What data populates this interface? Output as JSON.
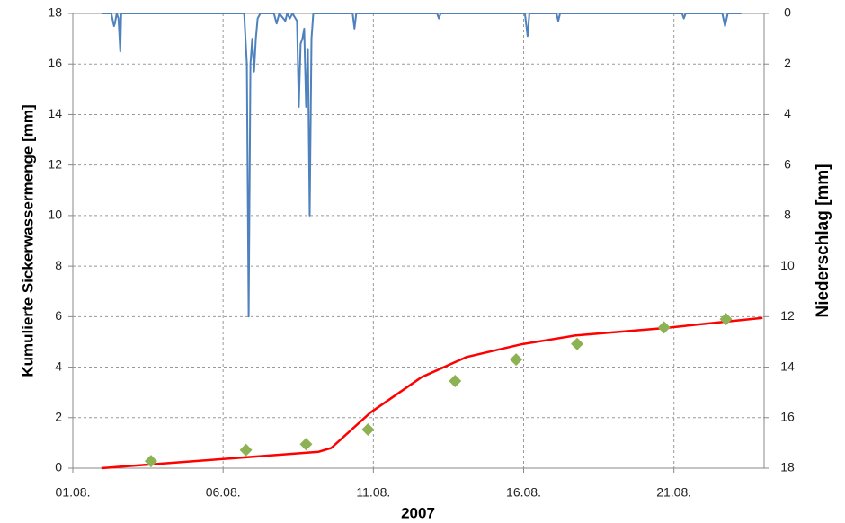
{
  "chart_data": {
    "type": "line",
    "xlabel": "2007",
    "ylabel": "Kumulierte  Sickerwassermenge  [mm]",
    "y2label": "Niederschlag [mm]",
    "xlim": [
      1,
      24
    ],
    "xticks": [
      {
        "value": 1,
        "label": "01.08."
      },
      {
        "value": 6,
        "label": "06.08."
      },
      {
        "value": 11,
        "label": "11.08."
      },
      {
        "value": 16,
        "label": "16.08."
      },
      {
        "value": 21,
        "label": "21.08."
      }
    ],
    "ylim": [
      0,
      18
    ],
    "yticks": [
      0,
      2,
      4,
      6,
      8,
      10,
      12,
      14,
      16,
      18
    ],
    "y2lim": [
      18,
      0
    ],
    "y2ticks": [
      0,
      2,
      4,
      6,
      8,
      10,
      12,
      14,
      16,
      18
    ],
    "grid": true,
    "series": [
      {
        "type": "line",
        "color": "#ff0000",
        "x": [
          1.95,
          9.18,
          9.6,
          10.9,
          12.6,
          14.1,
          15.9,
          17.7,
          20.7,
          23.95
        ],
        "values": [
          0,
          0.65,
          0.8,
          2.2,
          3.6,
          4.4,
          4.9,
          5.25,
          5.55,
          5.95
        ]
      },
      {
        "type": "scatter",
        "color": "#8db254",
        "x": [
          3.6,
          6.76,
          8.76,
          10.82,
          13.72,
          15.75,
          17.78,
          20.67,
          22.73
        ],
        "values": [
          0.28,
          0.72,
          0.95,
          1.53,
          3.45,
          4.3,
          4.92,
          5.57,
          5.9
        ]
      },
      {
        "type": "line",
        "color": "#4f81bd",
        "axis": "y2",
        "x": [
          1.96,
          2.28,
          2.37,
          2.4,
          2.46,
          2.52,
          2.58,
          2.61,
          6.7,
          6.79,
          6.85,
          6.91,
          6.97,
          7.03,
          7.09,
          7.15,
          7.24,
          7.69,
          7.78,
          7.87,
          8.07,
          8.13,
          8.22,
          8.31,
          8.46,
          8.52,
          8.58,
          8.64,
          8.7,
          8.76,
          8.82,
          8.88,
          8.94,
          9.0,
          10.31,
          10.37,
          10.43,
          13.12,
          13.18,
          13.24,
          16.04,
          16.13,
          16.19,
          17.09,
          17.15,
          17.21,
          21.27,
          21.33,
          21.39,
          22.61,
          22.7,
          22.79,
          23.24
        ],
        "values": [
          0,
          0,
          0.5,
          0.4,
          0,
          0.2,
          1.5,
          0,
          0,
          2,
          12,
          2,
          1,
          2.3,
          1,
          0.2,
          0,
          0,
          0.4,
          0,
          0.3,
          0,
          0.2,
          0,
          0.3,
          3.7,
          1.2,
          1,
          0.6,
          3.7,
          1.4,
          8,
          1,
          0,
          0,
          0.6,
          0,
          0,
          0.2,
          0,
          0,
          0.9,
          0,
          0,
          0.3,
          0,
          0,
          0.2,
          0,
          0,
          0.5,
          0,
          0
        ]
      }
    ]
  }
}
